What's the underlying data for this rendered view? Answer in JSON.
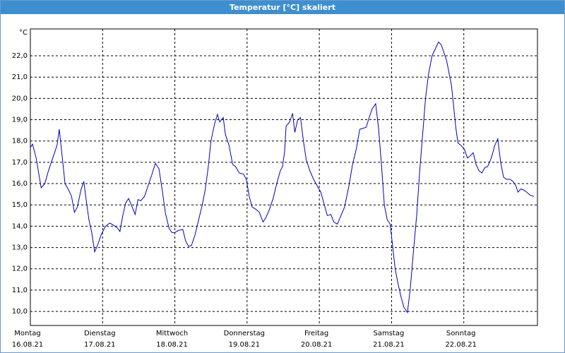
{
  "chart_data": {
    "type": "line",
    "title": "Temperatur [°C] skaliert",
    "y_unit": "°C",
    "color": "#0000c0",
    "grid": true,
    "x": [
      0,
      0.03,
      0.08,
      0.15,
      0.2,
      0.25,
      0.31,
      0.37,
      0.4,
      0.43,
      0.48,
      0.53,
      0.57,
      0.61,
      0.65,
      0.7,
      0.74,
      0.77,
      0.81,
      0.85,
      0.89,
      0.93,
      0.98,
      1.04,
      1.1,
      1.15,
      1.21,
      1.24,
      1.28,
      1.32,
      1.36,
      1.41,
      1.45,
      1.49,
      1.53,
      1.58,
      1.63,
      1.68,
      1.73,
      1.78,
      1.82,
      1.87,
      1.92,
      1.96,
      2,
      2.05,
      2.11,
      2.15,
      2.19,
      2.23,
      2.28,
      2.33,
      2.38,
      2.42,
      2.46,
      2.5,
      2.55,
      2.59,
      2.62,
      2.67,
      2.7,
      2.75,
      2.8,
      2.84,
      2.89,
      2.95,
      2.99,
      3.03,
      3.07,
      3.12,
      3.17,
      3.22,
      3.26,
      3.31,
      3.36,
      3.41,
      3.46,
      3.49,
      3.52,
      3.54,
      3.59,
      3.63,
      3.66,
      3.7,
      3.74,
      3.78,
      3.82,
      3.87,
      3.92,
      3.97,
      4.02,
      4.07,
      4.11,
      4.16,
      4.2,
      4.25,
      4.3,
      4.35,
      4.41,
      4.46,
      4.51,
      4.56,
      4.61,
      4.65,
      4.69,
      4.73,
      4.78,
      4.82,
      4.86,
      4.9,
      4.94,
      4.98,
      5.01,
      5.05,
      5.09,
      5.13,
      5.17,
      5.22,
      5.26,
      5.3,
      5.35,
      5.39,
      5.44,
      5.47,
      5.51,
      5.56,
      5.61,
      5.65,
      5.69,
      5.72,
      5.76,
      5.79,
      5.83,
      5.86,
      5.89,
      5.92,
      5.96,
      6.01,
      6.05,
      6.09,
      6.13,
      6.17,
      6.21,
      6.25,
      6.29,
      6.33,
      6.38,
      6.43,
      6.47,
      6.51,
      6.55,
      6.59,
      6.64,
      6.68,
      6.72,
      6.75,
      6.79,
      6.83,
      6.87,
      6.92,
      6.97
    ],
    "values": [
      17.7,
      17.85,
      17.2,
      15.8,
      16.0,
      16.6,
      17.2,
      17.8,
      18.55,
      17.6,
      16.0,
      15.7,
      15.4,
      14.65,
      14.9,
      15.7,
      16.1,
      15.3,
      14.3,
      13.7,
      12.8,
      13.1,
      13.6,
      14.0,
      14.15,
      14.05,
      13.9,
      13.75,
      14.5,
      15.1,
      15.3,
      14.9,
      14.55,
      15.25,
      15.2,
      15.4,
      15.9,
      16.4,
      16.95,
      16.7,
      15.8,
      14.6,
      13.9,
      13.7,
      13.7,
      13.8,
      13.85,
      13.3,
      13.05,
      13.1,
      13.6,
      14.3,
      15.0,
      15.7,
      16.7,
      18.0,
      18.8,
      19.25,
      18.9,
      19.1,
      18.3,
      17.8,
      16.9,
      16.8,
      16.5,
      16.45,
      16.2,
      15.4,
      14.9,
      14.8,
      14.65,
      14.2,
      14.4,
      14.8,
      15.3,
      16.0,
      16.6,
      16.8,
      17.5,
      18.7,
      18.9,
      19.3,
      18.4,
      19.0,
      19.1,
      18.0,
      17.1,
      16.6,
      16.2,
      15.9,
      15.6,
      15.0,
      14.5,
      14.55,
      14.2,
      14.1,
      14.5,
      14.9,
      15.9,
      16.9,
      17.6,
      18.55,
      18.6,
      18.65,
      19.1,
      19.5,
      19.75,
      18.6,
      16.9,
      15.0,
      14.3,
      14.1,
      13.2,
      12.0,
      11.3,
      10.7,
      10.2,
      9.95,
      11.1,
      12.7,
      14.6,
      16.6,
      18.7,
      20.0,
      21.1,
      22.0,
      22.35,
      22.65,
      22.5,
      22.2,
      21.8,
      21.3,
      20.6,
      19.6,
      18.6,
      17.9,
      17.8,
      17.6,
      17.2,
      17.3,
      17.45,
      16.9,
      16.6,
      16.5,
      16.75,
      16.8,
      17.2,
      17.8,
      18.1,
      17.0,
      16.3,
      16.2,
      16.2,
      16.1,
      15.9,
      15.6,
      15.75,
      15.7,
      15.6,
      15.45,
      15.4
    ],
    "xlim": [
      0,
      7
    ],
    "xticks": [
      {
        "value": 0,
        "label": "Montag\n16.08.21"
      },
      {
        "value": 1,
        "label": "Dienstag\n17.08.21"
      },
      {
        "value": 2,
        "label": "Mittwoch\n18.08.21"
      },
      {
        "value": 3,
        "label": "Donnerstag\n19.08.21"
      },
      {
        "value": 4,
        "label": "Freitag\n20.08.21"
      },
      {
        "value": 5,
        "label": "Samstag\n21.08.21"
      },
      {
        "value": 6,
        "label": "Sonntag\n22.08.21"
      }
    ],
    "ylim": [
      9.34,
      23.26
    ],
    "yticks": [
      {
        "value": 10,
        "label": "10,0"
      },
      {
        "value": 11,
        "label": "11,0"
      },
      {
        "value": 12,
        "label": "12,0"
      },
      {
        "value": 13,
        "label": "13,0"
      },
      {
        "value": 14,
        "label": "14,0"
      },
      {
        "value": 15,
        "label": "15,0"
      },
      {
        "value": 16,
        "label": "16,0"
      },
      {
        "value": 17,
        "label": "17,0"
      },
      {
        "value": 18,
        "label": "18,0"
      },
      {
        "value": 19,
        "label": "19,0"
      },
      {
        "value": 20,
        "label": "20,0"
      },
      {
        "value": 21,
        "label": "21,0"
      },
      {
        "value": 22,
        "label": "22,0"
      }
    ]
  }
}
